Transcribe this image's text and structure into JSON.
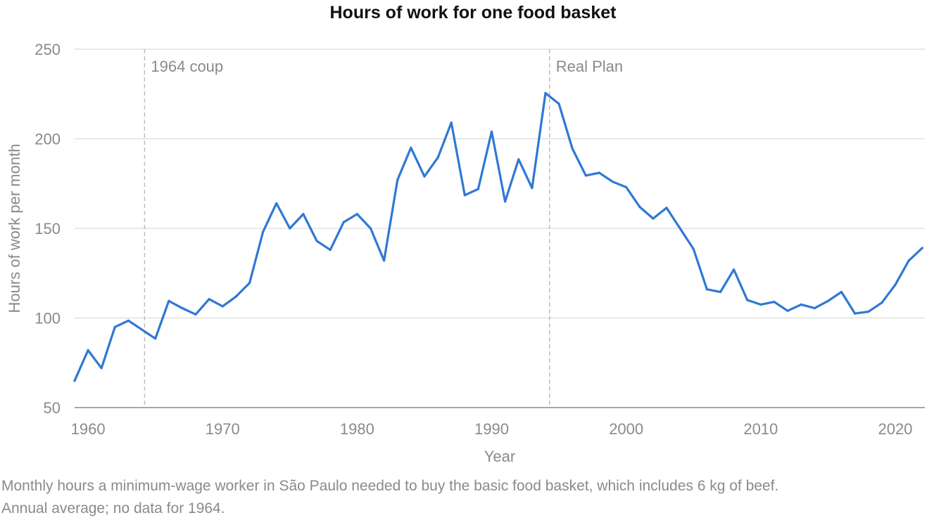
{
  "chart_data": {
    "type": "line",
    "title": "Hours of work for one food basket",
    "xlabel": "Year",
    "ylabel": "Hours of work per month",
    "xlim": [
      1959,
      1962.2
    ],
    "ylim": [
      50,
      250
    ],
    "x_ticks": [
      1960,
      1970,
      1980,
      1990,
      2000,
      2010,
      2020
    ],
    "y_ticks": [
      50,
      100,
      150,
      200,
      250
    ],
    "grid": "horizontal",
    "line_color": "#2f78d4",
    "annotations": [
      {
        "x": 1964.2,
        "label": "1964 coup"
      },
      {
        "x": 1994.3,
        "label": "Real Plan"
      }
    ],
    "series": [
      {
        "x": [
          1959,
          1960,
          1961,
          1962,
          1963,
          1965,
          1966,
          1967,
          1968,
          1969,
          1970,
          1971,
          1972,
          1973,
          1974,
          1975,
          1976,
          1977,
          1978,
          1979,
          1980,
          1981,
          1982,
          1983,
          1984,
          1985,
          1986,
          1987,
          1988,
          1989,
          1990,
          1991,
          1992,
          1993,
          1994,
          1995,
          1996,
          1997,
          1998,
          1999,
          2000,
          2001,
          2002,
          2003,
          2004,
          2005,
          2006,
          2007,
          2008,
          2009,
          2010,
          2011,
          2012,
          2013,
          2014,
          2015,
          2016,
          2017,
          2018,
          2019,
          2020,
          2021,
          2022
        ],
        "values": [
          65,
          82,
          72,
          95,
          98.5,
          88.5,
          109.5,
          105.5,
          102,
          110.5,
          106.5,
          112,
          119.5,
          148,
          164,
          150,
          158,
          143,
          138,
          153.5,
          158,
          150,
          132,
          177,
          195,
          179,
          189.5,
          209,
          168.5,
          172,
          204,
          165,
          188.5,
          172.5,
          225.5,
          219.5,
          194.5,
          179.5,
          181,
          176,
          173,
          162,
          155.5,
          161.5,
          150,
          138.5,
          116,
          114.5,
          127,
          110,
          107.5,
          109,
          104,
          107.5,
          105.5,
          109.5,
          114.5,
          102.5,
          103.5,
          108.5,
          118.5,
          132,
          139
        ]
      }
    ]
  },
  "caption": {
    "line1": "Monthly hours a minimum-wage worker in São Paulo needed to buy the basic food basket, which includes 6 kg of beef.",
    "line2": "Annual average; no data for 1964."
  }
}
